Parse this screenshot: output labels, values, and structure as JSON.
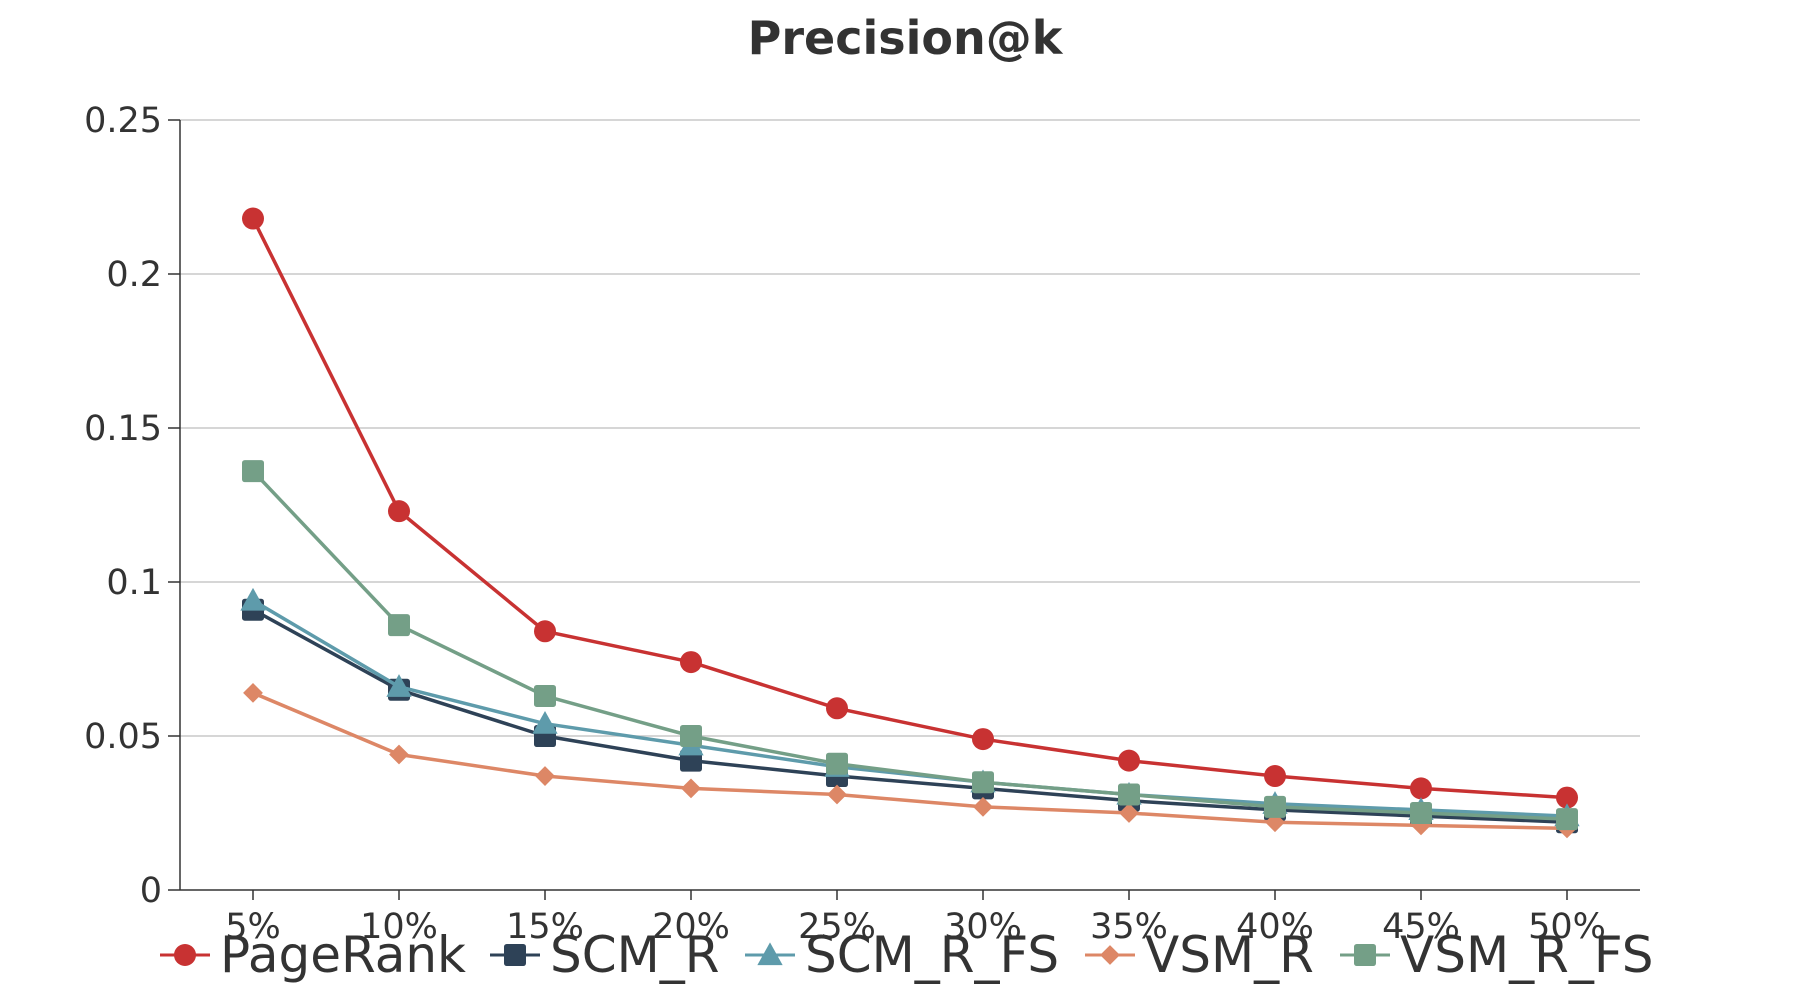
{
  "chart_data": {
    "type": "line",
    "title": "Precision@k",
    "xlabel": "",
    "ylabel": "",
    "categories": [
      "5%",
      "10%",
      "15%",
      "20%",
      "25%",
      "30%",
      "35%",
      "40%",
      "45%",
      "50%"
    ],
    "ylim": [
      0,
      0.25
    ],
    "yticks": [
      0,
      0.05,
      0.1,
      0.15,
      0.2,
      0.25
    ],
    "ytick_labels": [
      "0",
      "0.05",
      "0.1",
      "0.15",
      "0.2",
      "0.25"
    ],
    "grid": "horizontal",
    "legend_position": "bottom",
    "series": [
      {
        "name": "PageRank",
        "color": "#c83232",
        "marker": "circle",
        "values": [
          0.218,
          0.123,
          0.084,
          0.074,
          0.059,
          0.049,
          0.042,
          0.037,
          0.033,
          0.03
        ]
      },
      {
        "name": "SCM_R",
        "color": "#2e4257",
        "marker": "square",
        "values": [
          0.091,
          0.065,
          0.05,
          0.042,
          0.037,
          0.033,
          0.029,
          0.026,
          0.024,
          0.022
        ]
      },
      {
        "name": "SCM_R_FS",
        "color": "#5e9bab",
        "marker": "triangle",
        "values": [
          0.094,
          0.066,
          0.054,
          0.047,
          0.04,
          0.035,
          0.031,
          0.028,
          0.026,
          0.024
        ]
      },
      {
        "name": "VSM_R",
        "color": "#dd8766",
        "marker": "diamond",
        "values": [
          0.064,
          0.044,
          0.037,
          0.033,
          0.031,
          0.027,
          0.025,
          0.022,
          0.021,
          0.02
        ]
      },
      {
        "name": "VSM_R_FS",
        "color": "#749f87",
        "marker": "square",
        "values": [
          0.136,
          0.086,
          0.063,
          0.05,
          0.041,
          0.035,
          0.031,
          0.027,
          0.025,
          0.023
        ]
      }
    ]
  }
}
